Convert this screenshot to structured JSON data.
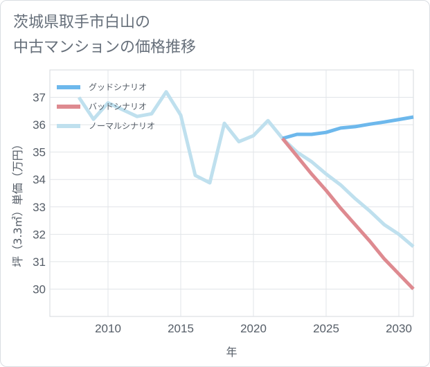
{
  "title_lines": [
    "茨城県取手市白山の",
    "中古マンションの価格推移"
  ],
  "chart_data": {
    "type": "line",
    "xlabel": "年",
    "ylabel": "坪（3.3㎡）単価（万円）",
    "xlim": [
      2006,
      2031
    ],
    "ylim": [
      29,
      38
    ],
    "xticks": [
      2010,
      2015,
      2020,
      2025,
      2030
    ],
    "yticks": [
      30,
      31,
      32,
      33,
      34,
      35,
      36,
      37
    ],
    "grid": true,
    "legend_position": "top-left",
    "series": [
      {
        "name": "グッドシナリオ",
        "color": "#6db8ec",
        "x": [
          2022,
          2023,
          2024,
          2025,
          2026,
          2027,
          2028,
          2029,
          2030,
          2031
        ],
        "values": [
          35.5,
          35.65,
          35.65,
          35.72,
          35.88,
          35.93,
          36.02,
          36.1,
          36.19,
          36.28
        ]
      },
      {
        "name": "バッドシナリオ",
        "color": "#de8a90",
        "x": [
          2022,
          2023,
          2024,
          2025,
          2026,
          2027,
          2028,
          2029,
          2030,
          2031
        ],
        "values": [
          35.5,
          34.85,
          34.2,
          33.6,
          32.95,
          32.35,
          31.75,
          31.1,
          30.55,
          30.0
        ]
      },
      {
        "name": "ノーマルシナリオ",
        "color": "#bfe0ee",
        "x": [
          2008,
          2009,
          2010,
          2011,
          2012,
          2013,
          2014,
          2015,
          2016,
          2017,
          2018,
          2019,
          2020,
          2021,
          2022,
          2023,
          2024,
          2025,
          2026,
          2027,
          2028,
          2029,
          2030,
          2031
        ],
        "values": [
          37.0,
          36.2,
          36.8,
          36.55,
          36.3,
          36.4,
          37.2,
          36.35,
          34.15,
          33.88,
          36.05,
          35.38,
          35.6,
          36.15,
          35.5,
          35.0,
          34.65,
          34.2,
          33.8,
          33.3,
          32.85,
          32.35,
          32.0,
          31.55
        ]
      }
    ]
  }
}
